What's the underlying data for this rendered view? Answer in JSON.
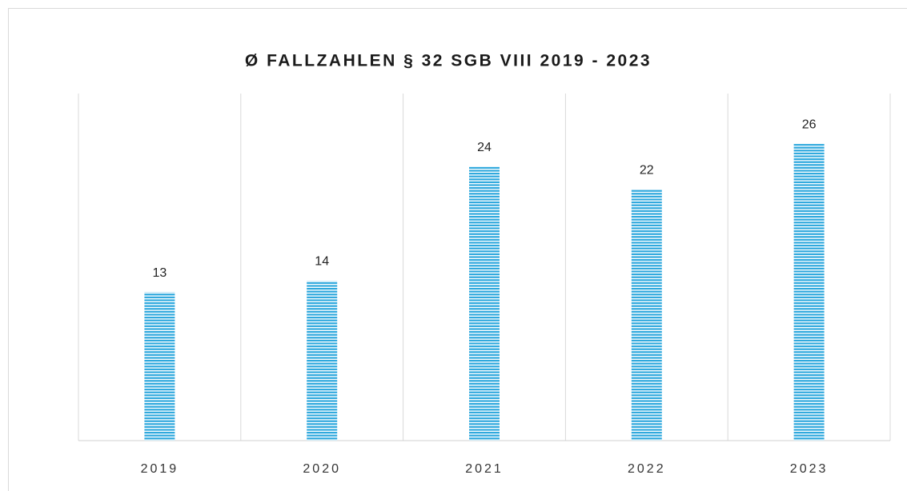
{
  "chart_data": {
    "type": "bar",
    "title": "Ø FALLZAHLEN § 32 SGB VIII 2019 - 2023",
    "categories": [
      "2019",
      "2020",
      "2021",
      "2022",
      "2023"
    ],
    "values": [
      13,
      14,
      24,
      22,
      26
    ],
    "color": "#2ea8dd",
    "ylim": [
      0,
      30
    ]
  }
}
